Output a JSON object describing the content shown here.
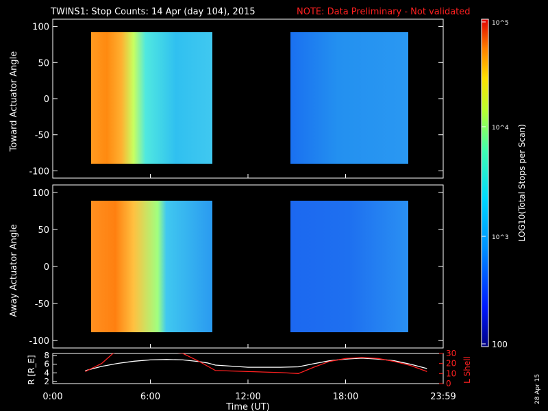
{
  "header": {
    "title": "TWINS1: Stop Counts: 14 Apr (day 104), 2015",
    "note": "NOTE: Data Preliminary - Not validated"
  },
  "footer": {
    "date_stamp": "28 Apr 15"
  },
  "colors": {
    "background": "#000000",
    "axes": "#ffffff",
    "note_text": "#ff2020",
    "r_line": "#ffffff",
    "l_line": "#ff2020"
  },
  "chart_data": [
    {
      "type": "heatmap",
      "title": "",
      "ylabel": "Toward Actuator Angle",
      "ylim": [
        -110,
        110
      ],
      "yticks": [
        -100,
        -50,
        0,
        50,
        100
      ],
      "xlim_hours": [
        0,
        24
      ],
      "data_blocks_hours": [
        [
          2.0,
          10.0
        ],
        [
          15.1,
          23.0
        ]
      ],
      "data_ylim": [
        -88,
        90
      ],
      "colorscale": "log10 counts, 100 to 100000"
    },
    {
      "type": "heatmap",
      "title": "",
      "ylabel": "Away Actuator Angle",
      "ylim": [
        -110,
        110
      ],
      "yticks": [
        -100,
        -50,
        0,
        50,
        100
      ],
      "xlim_hours": [
        0,
        24
      ],
      "data_blocks_hours": [
        [
          2.0,
          10.0
        ],
        [
          15.1,
          23.0
        ]
      ],
      "data_ylim": [
        -88,
        90
      ],
      "colorscale": "log10 counts, 100 to 100000"
    },
    {
      "type": "line",
      "xlabel": "Time (UT)",
      "xlim_hours": [
        0,
        24
      ],
      "xticks_hours": [
        0,
        6,
        12,
        18,
        24
      ],
      "xtick_labels": [
        "0:00",
        "6:00",
        "12:00",
        "18:00",
        "23:59"
      ],
      "left_axis": {
        "label": "R [R_E]",
        "ylim": [
          1.5,
          8.5
        ],
        "ticks": [
          2,
          4,
          6,
          8
        ]
      },
      "right_axis": {
        "label": "L Shell",
        "ylim": [
          0,
          30
        ],
        "ticks": [
          0,
          10,
          20,
          30
        ]
      },
      "series": [
        {
          "name": "R [R_E]",
          "axis": "left",
          "x": [
            2.0,
            3.0,
            4.0,
            5.0,
            6.0,
            7.0,
            8.0,
            9.0,
            9.5,
            10.0,
            12.0,
            14.0,
            15.1,
            16.0,
            17.0,
            18.0,
            19.0,
            20.0,
            21.0,
            22.0,
            23.0
          ],
          "y": [
            4.5,
            5.5,
            6.2,
            6.7,
            7.0,
            7.1,
            7.0,
            6.6,
            6.3,
            5.8,
            5.3,
            5.3,
            5.4,
            6.1,
            6.8,
            7.2,
            7.4,
            7.2,
            6.8,
            6.0,
            5.0
          ]
        },
        {
          "name": "L Shell",
          "axis": "right",
          "x": [
            2.0,
            3.0,
            3.7,
            4.0,
            7.2,
            8.0,
            9.0,
            10.0,
            12.0,
            14.0,
            15.1,
            16.0,
            17.0,
            18.0,
            19.0,
            20.0,
            21.0,
            22.0,
            23.0
          ],
          "y": [
            12,
            20,
            30,
            31,
            31,
            30,
            22,
            13,
            12,
            11,
            10,
            16,
            22,
            25,
            26,
            25,
            22,
            18,
            12
          ]
        }
      ]
    }
  ],
  "colorbar": {
    "label": "LOG10(Total Stops per Scan)",
    "tick_labels": [
      "10^5",
      "10^4",
      "10^3",
      "100"
    ]
  }
}
